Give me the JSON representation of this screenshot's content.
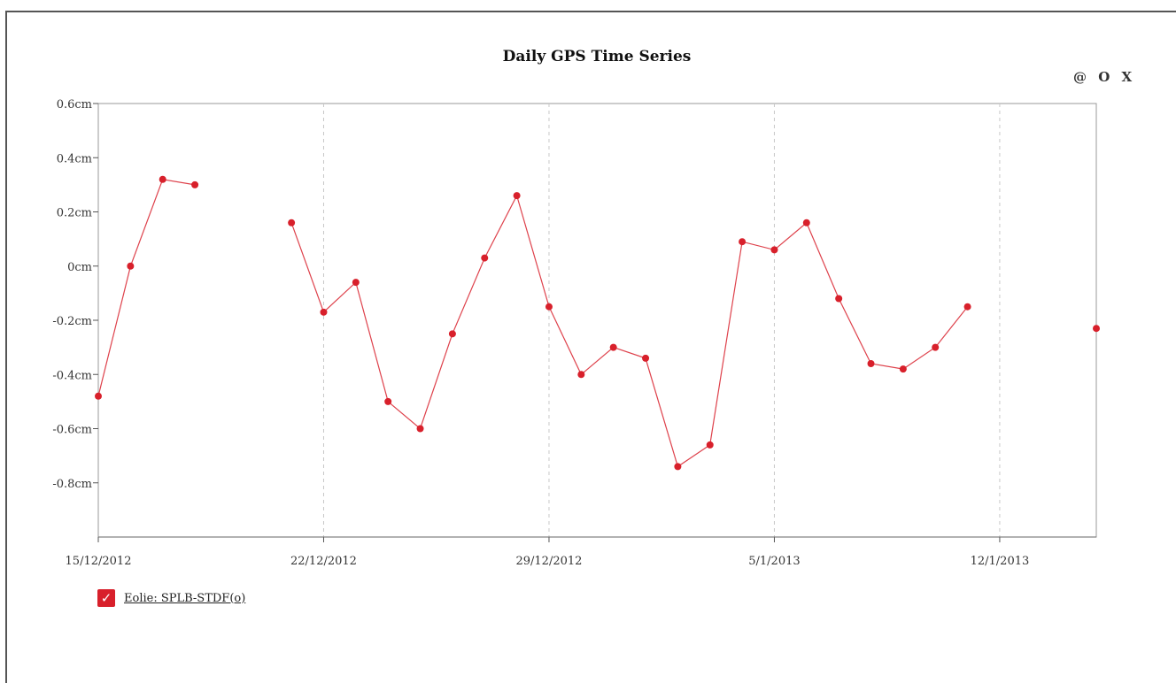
{
  "tools": {
    "camera_label": "@",
    "zoom_label": "O",
    "close_label": "X"
  },
  "chart_data": {
    "type": "line",
    "title": "Daily GPS Time Series",
    "xlabel": "",
    "ylabel": "",
    "y_unit": "cm",
    "ylim": [
      -1.0,
      0.6
    ],
    "y_ticks": [
      0.6,
      0.4,
      0.2,
      0,
      -0.2,
      -0.4,
      -0.6,
      -0.8
    ],
    "y_tick_labels": [
      "0.6cm",
      "0.4cm",
      "0.2cm",
      "0cm",
      "-0.2cm",
      "-0.4cm",
      "-0.6cm",
      "-0.8cm"
    ],
    "x_range": [
      "2012-12-15",
      "2013-01-15"
    ],
    "x_ticks": [
      "2012-12-15",
      "2012-12-22",
      "2012-12-29",
      "2013-01-05",
      "2013-01-12"
    ],
    "x_tick_labels": [
      "15/12/2012",
      "22/12/2012",
      "29/12/2012",
      "5/1/2013",
      "12/1/2013"
    ],
    "grid": "vertical-dashed",
    "legend_position": "bottom-left",
    "color": "#d8202b",
    "series": [
      {
        "name": "Eolie: SPLB-STDF(o)",
        "checked": true,
        "points": [
          {
            "x": "2012-12-15",
            "y": -0.48
          },
          {
            "x": "2012-12-16",
            "y": 0.0
          },
          {
            "x": "2012-12-17",
            "y": 0.32
          },
          {
            "x": "2012-12-18",
            "y": 0.3
          },
          {
            "x": "2012-12-21",
            "y": 0.16
          },
          {
            "x": "2012-12-22",
            "y": -0.17
          },
          {
            "x": "2012-12-23",
            "y": -0.06
          },
          {
            "x": "2012-12-24",
            "y": -0.5
          },
          {
            "x": "2012-12-25",
            "y": -0.6
          },
          {
            "x": "2012-12-26",
            "y": -0.25
          },
          {
            "x": "2012-12-27",
            "y": 0.03
          },
          {
            "x": "2012-12-28",
            "y": 0.26
          },
          {
            "x": "2012-12-29",
            "y": -0.15
          },
          {
            "x": "2012-12-30",
            "y": -0.4
          },
          {
            "x": "2012-12-31",
            "y": -0.3
          },
          {
            "x": "2013-01-01",
            "y": -0.34
          },
          {
            "x": "2013-01-02",
            "y": -0.74
          },
          {
            "x": "2013-01-03",
            "y": -0.66
          },
          {
            "x": "2013-01-04",
            "y": 0.09
          },
          {
            "x": "2013-01-05",
            "y": 0.06
          },
          {
            "x": "2013-01-06",
            "y": 0.16
          },
          {
            "x": "2013-01-07",
            "y": -0.12
          },
          {
            "x": "2013-01-08",
            "y": -0.36
          },
          {
            "x": "2013-01-09",
            "y": -0.38
          },
          {
            "x": "2013-01-10",
            "y": -0.3
          },
          {
            "x": "2013-01-11",
            "y": -0.15
          },
          {
            "x": "2013-01-15",
            "y": -0.23
          }
        ]
      }
    ]
  }
}
